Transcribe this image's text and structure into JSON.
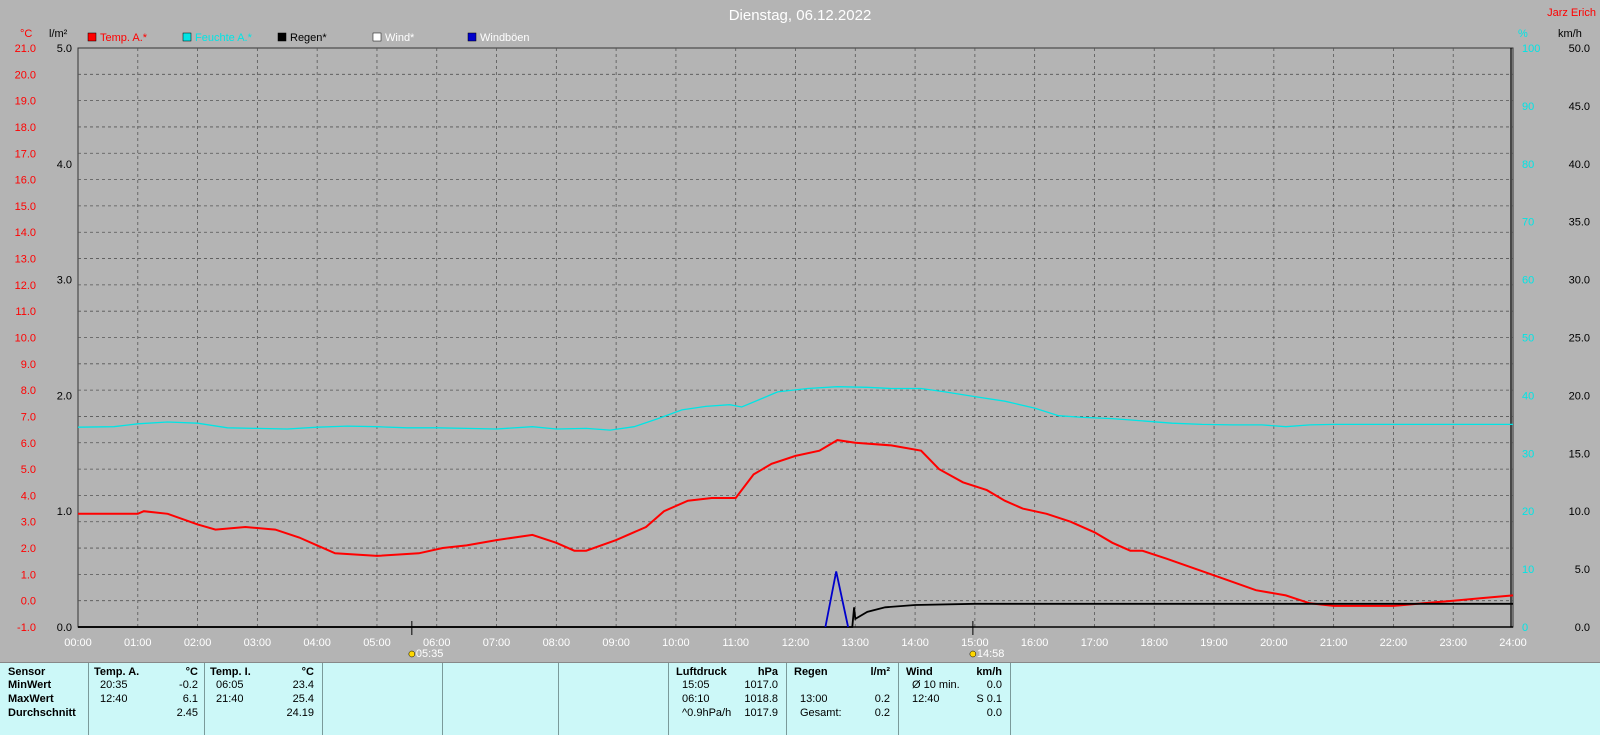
{
  "title": "Dienstag, 06.12.2022",
  "author": "Jarz Erich",
  "units": {
    "left_temp": "°C",
    "left_rain": "l/m²",
    "right_hum": "%",
    "right_wind": "km/h"
  },
  "legend": [
    {
      "label": "Temp. A.*",
      "color": "#ff0000"
    },
    {
      "label": "Feuchte A.*",
      "color": "#00e5e5"
    },
    {
      "label": "Regen*",
      "color": "#000000"
    },
    {
      "label": "Wind*",
      "color": "#ffffff"
    },
    {
      "label": "Windböen",
      "color": "#0000cc"
    }
  ],
  "axes": {
    "temp_ticks": [
      "21.0",
      "20.0",
      "19.0",
      "18.0",
      "17.0",
      "16.0",
      "15.0",
      "14.0",
      "13.0",
      "12.0",
      "11.0",
      "10.0",
      "9.0",
      "8.0",
      "7.0",
      "6.0",
      "5.0",
      "4.0",
      "3.0",
      "2.0",
      "1.0",
      "0.0",
      "-1.0"
    ],
    "rain_ticks": [
      "5.0",
      "4.0",
      "3.0",
      "2.0",
      "1.0",
      "0.0"
    ],
    "hum_ticks": [
      "100",
      "90",
      "80",
      "70",
      "60",
      "50",
      "40",
      "30",
      "20",
      "10",
      "0"
    ],
    "wind_ticks": [
      "50.0",
      "45.0",
      "40.0",
      "35.0",
      "30.0",
      "25.0",
      "20.0",
      "15.0",
      "10.0",
      "5.0",
      "0.0"
    ],
    "time_ticks": [
      "00:00",
      "01:00",
      "02:00",
      "03:00",
      "04:00",
      "05:00",
      "06:00",
      "07:00",
      "08:00",
      "09:00",
      "10:00",
      "11:00",
      "12:00",
      "13:00",
      "14:00",
      "15:00",
      "16:00",
      "17:00",
      "18:00",
      "19:00",
      "20:00",
      "21:00",
      "22:00",
      "23:00",
      "24:00"
    ],
    "sunrise": "05:35",
    "sunset": "14:58"
  },
  "chart_data": {
    "type": "line",
    "title": "Dienstag, 06.12.2022",
    "x_unit": "hours",
    "temp_range": [
      -1,
      21
    ],
    "rain_range": [
      0,
      5
    ],
    "hum_range": [
      0,
      100
    ],
    "wind_range": [
      0,
      50
    ],
    "series": [
      {
        "name": "Temp. A.*",
        "axis": "temp",
        "color": "#ff0000",
        "points": [
          [
            0,
            3.3
          ],
          [
            1,
            3.3
          ],
          [
            1.1,
            3.4
          ],
          [
            1.5,
            3.3
          ],
          [
            2,
            2.9
          ],
          [
            2.3,
            2.7
          ],
          [
            2.8,
            2.8
          ],
          [
            3.3,
            2.7
          ],
          [
            3.7,
            2.4
          ],
          [
            4,
            2.1
          ],
          [
            4.3,
            1.8
          ],
          [
            5,
            1.7
          ],
          [
            5.7,
            1.8
          ],
          [
            6.1,
            2.0
          ],
          [
            6.5,
            2.1
          ],
          [
            7,
            2.3
          ],
          [
            7.6,
            2.5
          ],
          [
            8,
            2.2
          ],
          [
            8.3,
            1.9
          ],
          [
            8.5,
            1.9
          ],
          [
            9,
            2.3
          ],
          [
            9.5,
            2.8
          ],
          [
            9.8,
            3.4
          ],
          [
            10.2,
            3.8
          ],
          [
            10.6,
            3.9
          ],
          [
            11,
            3.9
          ],
          [
            11.3,
            4.8
          ],
          [
            11.6,
            5.2
          ],
          [
            12,
            5.5
          ],
          [
            12.4,
            5.7
          ],
          [
            12.7,
            6.1
          ],
          [
            13,
            6.0
          ],
          [
            13.6,
            5.9
          ],
          [
            14.1,
            5.7
          ],
          [
            14.4,
            5.0
          ],
          [
            14.8,
            4.5
          ],
          [
            15.2,
            4.2
          ],
          [
            15.5,
            3.8
          ],
          [
            15.8,
            3.5
          ],
          [
            16.2,
            3.3
          ],
          [
            16.6,
            3.0
          ],
          [
            17,
            2.6
          ],
          [
            17.3,
            2.2
          ],
          [
            17.6,
            1.9
          ],
          [
            17.8,
            1.9
          ],
          [
            18.2,
            1.6
          ],
          [
            18.7,
            1.2
          ],
          [
            19.2,
            0.8
          ],
          [
            19.7,
            0.4
          ],
          [
            20.2,
            0.2
          ],
          [
            20.6,
            -0.1
          ],
          [
            21,
            -0.2
          ],
          [
            21.5,
            -0.2
          ],
          [
            22,
            -0.2
          ],
          [
            22.5,
            -0.1
          ],
          [
            23,
            0.0
          ],
          [
            23.5,
            0.1
          ],
          [
            24,
            0.2
          ]
        ]
      },
      {
        "name": "Feuchte A.*",
        "axis": "hum",
        "color": "#00e5e5",
        "points": [
          [
            0,
            34.5
          ],
          [
            0.6,
            34.6
          ],
          [
            1,
            35.1
          ],
          [
            1.5,
            35.4
          ],
          [
            2,
            35.2
          ],
          [
            2.5,
            34.4
          ],
          [
            3,
            34.3
          ],
          [
            3.5,
            34.2
          ],
          [
            4,
            34.5
          ],
          [
            4.5,
            34.7
          ],
          [
            5,
            34.6
          ],
          [
            5.5,
            34.4
          ],
          [
            6,
            34.4
          ],
          [
            6.5,
            34.3
          ],
          [
            7,
            34.2
          ],
          [
            7.6,
            34.6
          ],
          [
            8,
            34.2
          ],
          [
            8.5,
            34.3
          ],
          [
            8.9,
            34.0
          ],
          [
            9.3,
            34.6
          ],
          [
            9.7,
            36.0
          ],
          [
            10.1,
            37.5
          ],
          [
            10.5,
            38.1
          ],
          [
            10.9,
            38.4
          ],
          [
            11.1,
            38.0
          ],
          [
            11.4,
            39.3
          ],
          [
            11.7,
            40.6
          ],
          [
            12.2,
            41.2
          ],
          [
            12.7,
            41.5
          ],
          [
            13.2,
            41.4
          ],
          [
            13.6,
            41.2
          ],
          [
            14.1,
            41.2
          ],
          [
            14.5,
            40.6
          ],
          [
            15,
            39.8
          ],
          [
            15.5,
            39.0
          ],
          [
            16,
            37.8
          ],
          [
            16.4,
            36.5
          ],
          [
            16.8,
            36.2
          ],
          [
            17.3,
            36.0
          ],
          [
            17.8,
            35.6
          ],
          [
            18.3,
            35.2
          ],
          [
            18.8,
            35.0
          ],
          [
            19.3,
            34.9
          ],
          [
            19.8,
            34.9
          ],
          [
            20.2,
            34.6
          ],
          [
            20.6,
            34.9
          ],
          [
            21,
            35.0
          ],
          [
            22,
            35.0
          ],
          [
            23,
            35.0
          ],
          [
            24,
            35.0
          ]
        ]
      },
      {
        "name": "Regen*",
        "axis": "rain",
        "color": "#000000",
        "points": [
          [
            0,
            0
          ],
          [
            12.95,
            0
          ],
          [
            12.98,
            0.17
          ],
          [
            13.0,
            0.07
          ],
          [
            13.2,
            0.13
          ],
          [
            13.5,
            0.17
          ],
          [
            14,
            0.19
          ],
          [
            15,
            0.2
          ],
          [
            24,
            0.2
          ]
        ]
      },
      {
        "name": "Windböen",
        "axis": "wind",
        "color": "#0000cc",
        "points": [
          [
            12.5,
            0
          ],
          [
            12.68,
            4.8
          ],
          [
            12.88,
            0
          ]
        ]
      }
    ]
  },
  "stats": {
    "sensor": {
      "header": "Sensor",
      "rows": [
        "MinWert",
        "MaxWert",
        "Durchschnitt"
      ]
    },
    "temp_a": {
      "header": "Temp. A.",
      "unit": "°C",
      "rows": [
        [
          "20:35",
          "-0.2"
        ],
        [
          "12:40",
          "6.1"
        ],
        [
          "",
          "2.45"
        ]
      ]
    },
    "temp_i": {
      "header": "Temp. I.",
      "unit": "°C",
      "rows": [
        [
          "06:05",
          "23.4"
        ],
        [
          "21:40",
          "25.4"
        ],
        [
          "",
          "24.19"
        ]
      ]
    },
    "pressure": {
      "header": "Luftdruck",
      "unit": "hPa",
      "rows": [
        [
          "15:05",
          "1017.0"
        ],
        [
          "06:10",
          "1018.8"
        ],
        [
          "^0.9hPa/h",
          "1017.9"
        ]
      ]
    },
    "rain": {
      "header": "Regen",
      "unit": "l/m²",
      "rows": [
        [
          "",
          ""
        ],
        [
          "13:00",
          "0.2"
        ],
        [
          "Gesamt:",
          "0.2"
        ]
      ]
    },
    "wind": {
      "header": "Wind",
      "unit": "km/h",
      "rows": [
        [
          "Ø 10 min.",
          "0.0"
        ],
        [
          "12:40",
          "S 0.1"
        ],
        [
          "",
          "0.0"
        ]
      ]
    }
  }
}
